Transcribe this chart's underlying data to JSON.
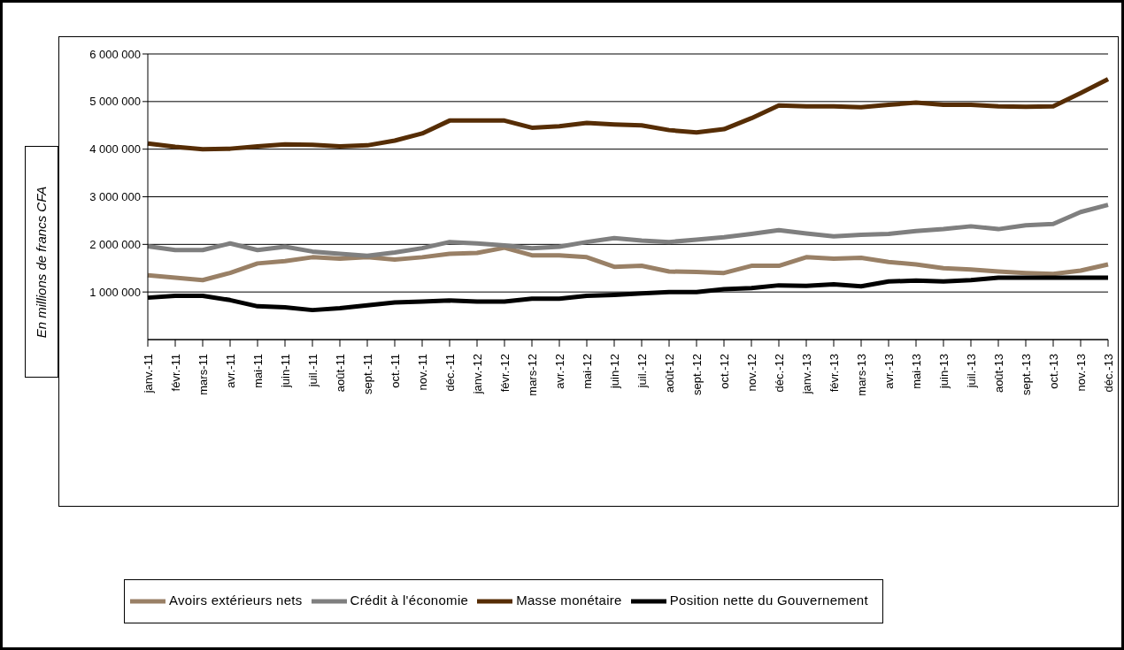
{
  "chart_data": {
    "type": "line",
    "ylabel": "En millions de francs CFA",
    "categories": [
      "janv.-11",
      "févr.-11",
      "mars-11",
      "avr.-11",
      "mai-11",
      "juin-11",
      "juil.-11",
      "août-11",
      "sept.-11",
      "oct.-11",
      "nov.-11",
      "déc.-11",
      "janv.-12",
      "févr.-12",
      "mars-12",
      "avr.-12",
      "mai-12",
      "juin-12",
      "juil.-12",
      "août-12",
      "sept.-12",
      "oct.-12",
      "nov.-12",
      "déc.-12",
      "janv.-13",
      "févr.-13",
      "mars-13",
      "avr.-13",
      "mai-13",
      "juin-13",
      "juil.-13",
      "août-13",
      "sept.-13",
      "oct.-13",
      "nov.-13",
      "déc.-13"
    ],
    "series": [
      {
        "name": "Avoirs extérieurs nets",
        "color": "#998066",
        "values": [
          1350000,
          1300000,
          1250000,
          1400000,
          1600000,
          1650000,
          1730000,
          1700000,
          1730000,
          1680000,
          1730000,
          1800000,
          1820000,
          1930000,
          1770000,
          1770000,
          1730000,
          1530000,
          1550000,
          1430000,
          1420000,
          1400000,
          1550000,
          1550000,
          1730000,
          1700000,
          1720000,
          1630000,
          1580000,
          1500000,
          1470000,
          1430000,
          1400000,
          1380000,
          1450000,
          1580000
        ]
      },
      {
        "name": "Position nette du Gouvernement",
        "color": "#000000",
        "values": [
          880000,
          920000,
          920000,
          830000,
          700000,
          680000,
          620000,
          660000,
          720000,
          780000,
          800000,
          820000,
          800000,
          800000,
          860000,
          860000,
          920000,
          940000,
          970000,
          1000000,
          1000000,
          1060000,
          1080000,
          1140000,
          1130000,
          1160000,
          1120000,
          1220000,
          1240000,
          1220000,
          1250000,
          1300000,
          1300000,
          1300000,
          1300000,
          1300000
        ]
      },
      {
        "name": "Crédit à l'économie",
        "color": "#7f7f7f",
        "values": [
          1960000,
          1880000,
          1880000,
          2020000,
          1880000,
          1950000,
          1850000,
          1800000,
          1760000,
          1830000,
          1920000,
          2050000,
          2020000,
          1980000,
          1920000,
          1950000,
          2050000,
          2130000,
          2080000,
          2050000,
          2100000,
          2150000,
          2220000,
          2300000,
          2230000,
          2170000,
          2200000,
          2220000,
          2280000,
          2320000,
          2380000,
          2320000,
          2400000,
          2430000,
          2680000,
          2830000
        ]
      },
      {
        "name": "Masse monétaire",
        "color": "#562d05",
        "values": [
          4120000,
          4050000,
          4000000,
          4010000,
          4060000,
          4100000,
          4090000,
          4060000,
          4080000,
          4180000,
          4330000,
          4600000,
          4600000,
          4600000,
          4450000,
          4480000,
          4550000,
          4520000,
          4500000,
          4400000,
          4350000,
          4420000,
          4650000,
          4920000,
          4900000,
          4900000,
          4880000,
          4930000,
          4980000,
          4930000,
          4930000,
          4900000,
          4890000,
          4900000,
          5180000,
          5470000
        ]
      }
    ],
    "ylim": [
      0,
      6000000
    ],
    "yticks": [
      {
        "value": 1000000,
        "label": "1 000 000"
      },
      {
        "value": 2000000,
        "label": "2 000 000"
      },
      {
        "value": 3000000,
        "label": "3 000 000"
      },
      {
        "value": 4000000,
        "label": "4 000 000"
      },
      {
        "value": 5000000,
        "label": "5 000 000"
      },
      {
        "value": 6000000,
        "label": "6 000 000"
      }
    ],
    "grid": "y",
    "legend": "bottom",
    "marker": "none",
    "line_style": "solid"
  }
}
